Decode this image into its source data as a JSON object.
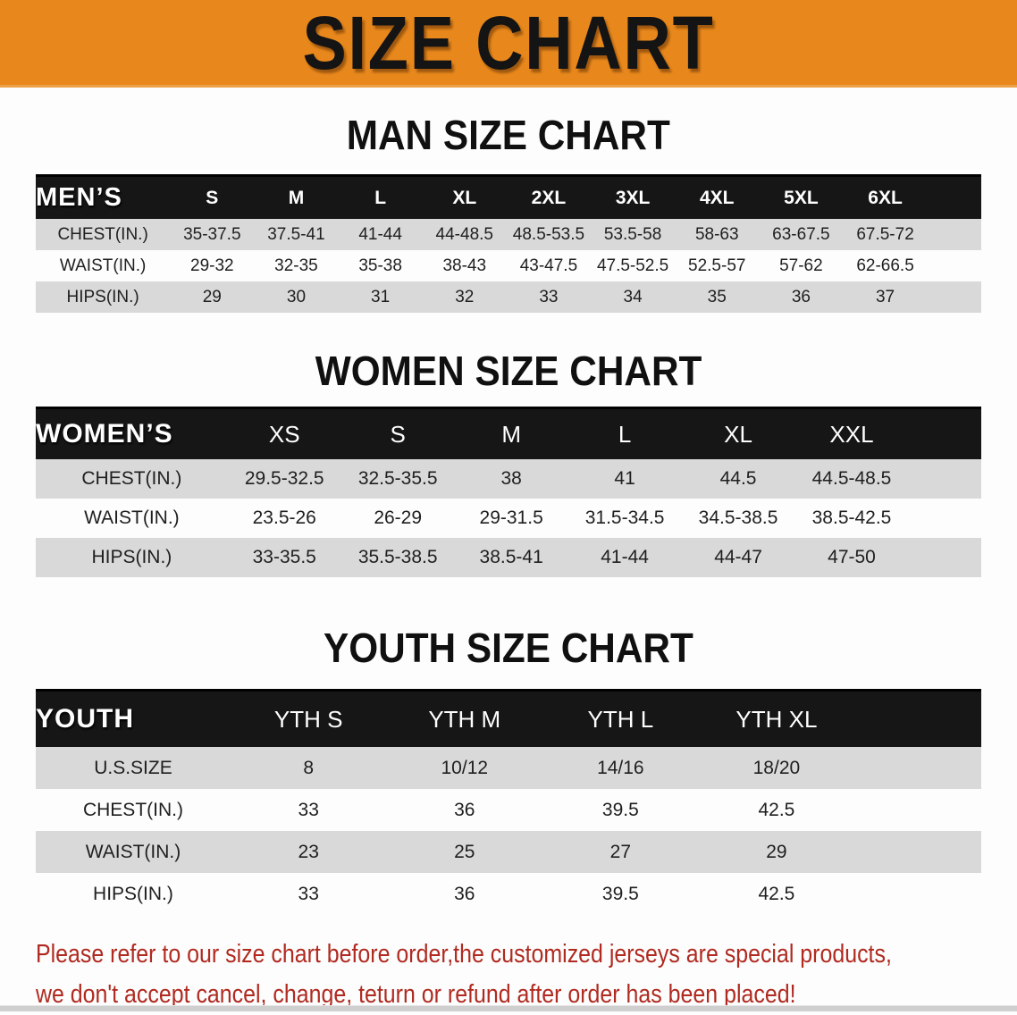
{
  "banner": {
    "title": "SIZE CHART",
    "background_color": "#e8881c"
  },
  "colors": {
    "table_header_bg": "#161616",
    "row_gray": "#d9d9d9",
    "row_white": "#fdfdfd",
    "disclaimer_red": "#b02a20"
  },
  "sections": [
    {
      "heading": "MAN SIZE CHART",
      "table": {
        "label": "MEN’S",
        "columns": [
          "S",
          "M",
          "L",
          "XL",
          "2XL",
          "3XL",
          "4XL",
          "5XL",
          "6XL"
        ],
        "rows": [
          {
            "label": "CHEST(IN.)",
            "values": [
              "35-37.5",
              "37.5-41",
              "41-44",
              "44-48.5",
              "48.5-53.5",
              "53.5-58",
              "58-63",
              "63-67.5",
              "67.5-72"
            ]
          },
          {
            "label": "WAIST(IN.)",
            "values": [
              "29-32",
              "32-35",
              "35-38",
              "38-43",
              "43-47.5",
              "47.5-52.5",
              "52.5-57",
              "57-62",
              "62-66.5"
            ]
          },
          {
            "label": "HIPS(IN.)",
            "values": [
              "29",
              "30",
              "31",
              "32",
              "33",
              "34",
              "35",
              "36",
              "37"
            ]
          }
        ]
      }
    },
    {
      "heading": "WOMEN SIZE CHART",
      "table": {
        "label": "WOMEN’S",
        "columns": [
          "XS",
          "S",
          "M",
          "L",
          "XL",
          "XXL"
        ],
        "rows": [
          {
            "label": "CHEST(IN.)",
            "values": [
              "29.5-32.5",
              "32.5-35.5",
              "38",
              "41",
              "44.5",
              "44.5-48.5"
            ]
          },
          {
            "label": "WAIST(IN.)",
            "values": [
              "23.5-26",
              "26-29",
              "29-31.5",
              "31.5-34.5",
              "34.5-38.5",
              "38.5-42.5"
            ]
          },
          {
            "label": "HIPS(IN.)",
            "values": [
              "33-35.5",
              "35.5-38.5",
              "38.5-41",
              "41-44",
              "44-47",
              "47-50"
            ]
          }
        ]
      }
    },
    {
      "heading": "YOUTH SIZE CHART",
      "table": {
        "label": "YOUTH",
        "columns": [
          "YTH S",
          "YTH M",
          "YTH L",
          "YTH XL"
        ],
        "rows": [
          {
            "label": "U.S.SIZE",
            "values": [
              "8",
              "10/12",
              "14/16",
              "18/20"
            ]
          },
          {
            "label": "CHEST(IN.)",
            "values": [
              "33",
              "36",
              "39.5",
              "42.5"
            ]
          },
          {
            "label": "WAIST(IN.)",
            "values": [
              "23",
              "25",
              "27",
              "29"
            ]
          },
          {
            "label": "HIPS(IN.)",
            "values": [
              "33",
              "36",
              "39.5",
              "42.5"
            ]
          }
        ]
      }
    }
  ],
  "disclaimer": {
    "line1": "Please refer to our size chart before order,the customized jerseys are special products,",
    "line2": "we don't accept cancel, change, teturn or refund after order has been placed!"
  }
}
